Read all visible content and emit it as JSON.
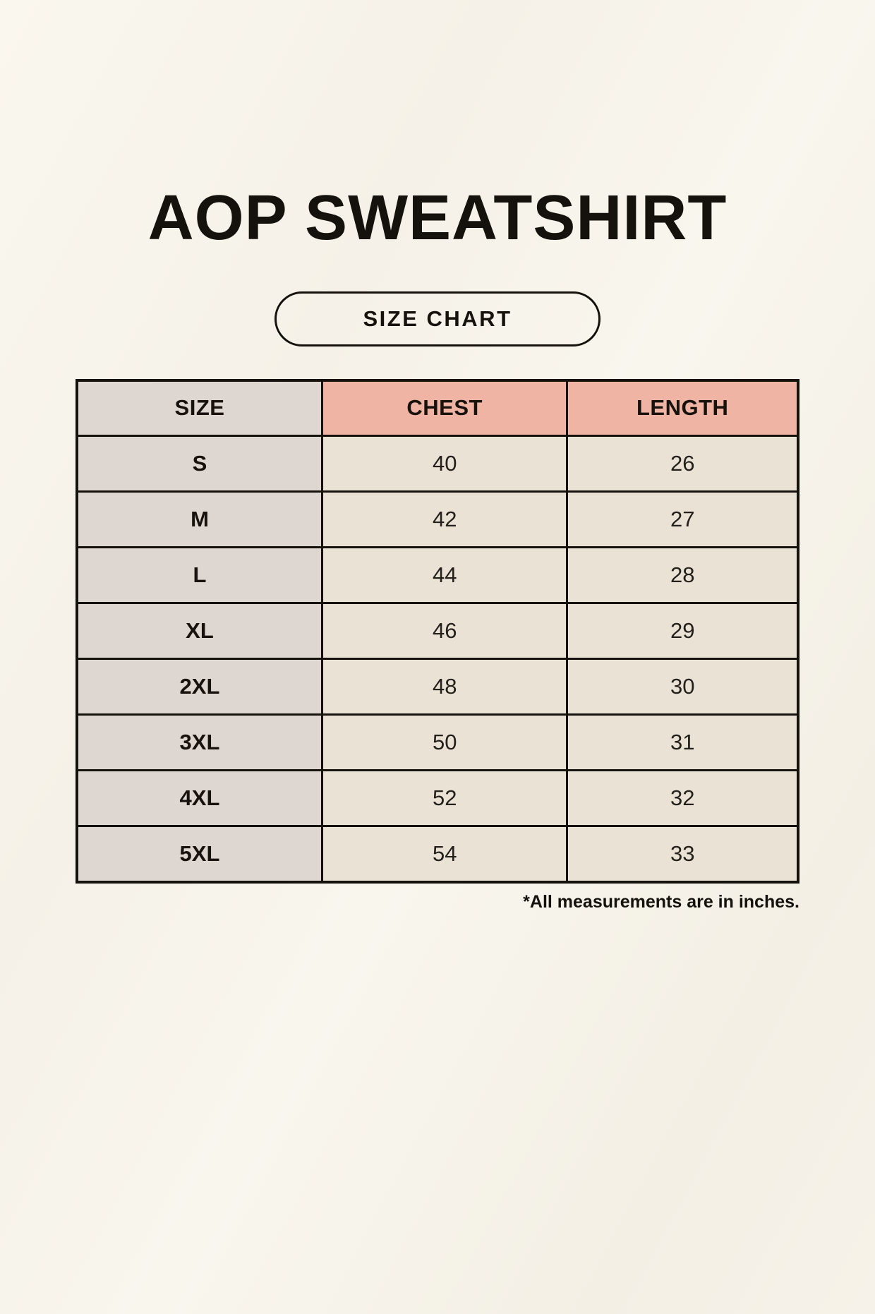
{
  "header": {
    "title": "AOP SWEATSHIRT",
    "badge_label": "SIZE CHART"
  },
  "size_chart": {
    "columns": [
      "SIZE",
      "CHEST",
      "LENGTH"
    ],
    "rows": [
      {
        "size": "S",
        "chest": "40",
        "length": "26"
      },
      {
        "size": "M",
        "chest": "42",
        "length": "27"
      },
      {
        "size": "L",
        "chest": "44",
        "length": "28"
      },
      {
        "size": "XL",
        "chest": "46",
        "length": "29"
      },
      {
        "size": "2XL",
        "chest": "48",
        "length": "30"
      },
      {
        "size": "3XL",
        "chest": "50",
        "length": "31"
      },
      {
        "size": "4XL",
        "chest": "52",
        "length": "32"
      },
      {
        "size": "5XL",
        "chest": "54",
        "length": "33"
      }
    ],
    "footnote": "*All measurements are in inches.",
    "colors": {
      "size_column_bg": "#ddd6d1",
      "header_accent_bg": "#efb4a3",
      "value_cell_bg": "#e9e2d5",
      "border": "#15110d",
      "page_background": "#f6f2e9"
    }
  },
  "chart_data": {
    "type": "table",
    "title": "AOP SWEATSHIRT",
    "subtitle": "SIZE CHART",
    "columns": [
      "SIZE",
      "CHEST",
      "LENGTH"
    ],
    "rows": [
      [
        "S",
        40,
        26
      ],
      [
        "M",
        42,
        27
      ],
      [
        "L",
        44,
        28
      ],
      [
        "XL",
        46,
        29
      ],
      [
        "2XL",
        48,
        30
      ],
      [
        "3XL",
        50,
        31
      ],
      [
        "4XL",
        52,
        32
      ],
      [
        "5XL",
        54,
        33
      ]
    ],
    "units": "inches",
    "footnote": "*All measurements are in inches."
  }
}
